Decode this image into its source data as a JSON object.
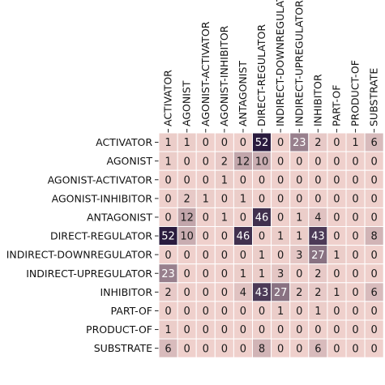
{
  "chart_data": {
    "type": "heatmap",
    "title": "",
    "xlabel": "",
    "ylabel": "",
    "columns": [
      "ACTIVATOR",
      "AGONIST",
      "AGONIST-ACTIVATOR",
      "AGONIST-INHIBITOR",
      "ANTAGONIST",
      "DIRECT-REGULATOR",
      "INDIRECT-DOWNREGULATOR",
      "INDIRECT-UPREGULATOR",
      "INHIBITOR",
      "PART-OF",
      "PRODUCT-OF",
      "SUBSTRATE"
    ],
    "rows": [
      "ACTIVATOR",
      "AGONIST",
      "AGONIST-ACTIVATOR",
      "AGONIST-INHIBITOR",
      "ANTAGONIST",
      "DIRECT-REGULATOR",
      "INDIRECT-DOWNREGULATOR",
      "INDIRECT-UPREGULATOR",
      "INHIBITOR",
      "PART-OF",
      "PRODUCT-OF",
      "SUBSTRATE"
    ],
    "values": [
      [
        1,
        1,
        0,
        0,
        0,
        52,
        0,
        23,
        2,
        0,
        1,
        6
      ],
      [
        1,
        0,
        0,
        2,
        12,
        10,
        0,
        0,
        0,
        0,
        0,
        0
      ],
      [
        0,
        0,
        0,
        1,
        0,
        0,
        0,
        0,
        0,
        0,
        0,
        0
      ],
      [
        0,
        2,
        1,
        0,
        1,
        0,
        0,
        0,
        0,
        0,
        0,
        0
      ],
      [
        0,
        12,
        0,
        1,
        0,
        46,
        0,
        1,
        4,
        0,
        0,
        0
      ],
      [
        52,
        10,
        0,
        0,
        46,
        0,
        1,
        1,
        43,
        0,
        0,
        8
      ],
      [
        0,
        0,
        0,
        0,
        0,
        1,
        0,
        3,
        27,
        1,
        0,
        0
      ],
      [
        23,
        0,
        0,
        0,
        1,
        1,
        3,
        0,
        2,
        0,
        0,
        0
      ],
      [
        2,
        0,
        0,
        0,
        4,
        43,
        27,
        2,
        2,
        1,
        0,
        6
      ],
      [
        0,
        0,
        0,
        0,
        0,
        0,
        1,
        0,
        1,
        0,
        0,
        0
      ],
      [
        1,
        0,
        0,
        0,
        0,
        0,
        0,
        0,
        0,
        0,
        0,
        0
      ],
      [
        6,
        0,
        0,
        0,
        0,
        8,
        0,
        0,
        6,
        0,
        0,
        0
      ]
    ],
    "colormap": [
      "#efd0cc",
      "#2a1b3e"
    ],
    "value_range": [
      0,
      52
    ],
    "grid": true,
    "legend": "none"
  }
}
